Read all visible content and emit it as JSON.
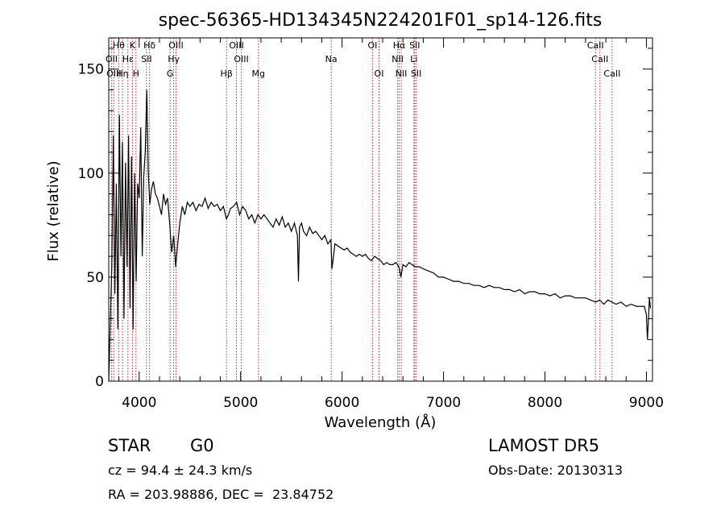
{
  "chart_data": {
    "type": "line",
    "title": "spec-56365-HD134345N224201F01_sp14-126.fits",
    "xlabel": "Wavelength (Å)",
    "ylabel": "Flux (relative)",
    "xlim": [
      3700,
      9060
    ],
    "ylim": [
      0,
      165
    ],
    "xticks": [
      4000,
      5000,
      6000,
      7000,
      8000,
      9000
    ],
    "yticks": [
      0,
      50,
      100,
      150
    ],
    "grid": false,
    "colors": {
      "spectrum": "#000000",
      "line_markers": "#b03030",
      "axes": "#000000"
    },
    "spectral_lines": [
      {
        "label": "Hθ",
        "x": 3798,
        "row": 0
      },
      {
        "label": "K",
        "x": 3934,
        "row": 0
      },
      {
        "label": "Hδ",
        "x": 4102,
        "row": 0
      },
      {
        "label": "OIII",
        "x": 4363,
        "row": 0
      },
      {
        "label": "OIII",
        "x": 4959,
        "row": 0
      },
      {
        "label": "OI",
        "x": 6300,
        "row": 0
      },
      {
        "label": "Hα",
        "x": 6563,
        "row": 0
      },
      {
        "label": "SII",
        "x": 6716,
        "row": 0
      },
      {
        "label": "CaII",
        "x": 8498,
        "row": 0
      },
      {
        "label": "OII",
        "x": 3727,
        "row": 1
      },
      {
        "label": "Hε",
        "x": 3889,
        "row": 1
      },
      {
        "label": "SII",
        "x": 4072,
        "row": 1
      },
      {
        "label": "Hγ",
        "x": 4340,
        "row": 1
      },
      {
        "label": "OIII",
        "x": 5007,
        "row": 1
      },
      {
        "label": "NII",
        "x": 6548,
        "row": 1
      },
      {
        "label": "Li",
        "x": 6708,
        "row": 1
      },
      {
        "label": "CaII",
        "x": 8542,
        "row": 1
      },
      {
        "label": "OIII",
        "x": 3750,
        "row": 2
      },
      {
        "label": "Hη",
        "x": 3835,
        "row": 2
      },
      {
        "label": "H",
        "x": 3968,
        "row": 2
      },
      {
        "label": "G",
        "x": 4305,
        "row": 2
      },
      {
        "label": "Hβ",
        "x": 4861,
        "row": 2
      },
      {
        "label": "Mg",
        "x": 5175,
        "row": 2
      },
      {
        "label": "Na",
        "x": 5893,
        "row": 1
      },
      {
        "label": "OI",
        "x": 6364,
        "row": 2
      },
      {
        "label": "NII",
        "x": 6583,
        "row": 2
      },
      {
        "label": "SII",
        "x": 6731,
        "row": 2
      },
      {
        "label": "CaII",
        "x": 8662,
        "row": 2
      }
    ],
    "series": [
      {
        "x": [
          3700,
          3715,
          3730,
          3745,
          3760,
          3775,
          3790,
          3805,
          3820,
          3835,
          3850,
          3865,
          3880,
          3895,
          3910,
          3925,
          3940,
          3955,
          3970,
          3985,
          4000,
          4015,
          4030,
          4045,
          4060,
          4075,
          4090,
          4105,
          4120,
          4140,
          4160,
          4180,
          4200,
          4220,
          4240,
          4260,
          4280,
          4300,
          4320,
          4340,
          4360,
          4380,
          4400,
          4425,
          4450,
          4475,
          4500,
          4530,
          4560,
          4590,
          4620,
          4650,
          4680,
          4710,
          4740,
          4770,
          4800,
          4830,
          4860,
          4880,
          4900,
          4930,
          4960,
          4990,
          5020,
          5050,
          5080,
          5110,
          5140,
          5170,
          5200,
          5230,
          5260,
          5290,
          5320,
          5350,
          5380,
          5410,
          5440,
          5470,
          5500,
          5530,
          5560,
          5570,
          5580,
          5600,
          5620,
          5650,
          5680,
          5710,
          5740,
          5770,
          5800,
          5830,
          5860,
          5890,
          5900,
          5930,
          5960,
          5990,
          6020,
          6050,
          6080,
          6110,
          6140,
          6170,
          6200,
          6230,
          6260,
          6290,
          6320,
          6350,
          6380,
          6410,
          6440,
          6470,
          6500,
          6530,
          6560,
          6580,
          6600,
          6630,
          6660,
          6690,
          6720,
          6760,
          6800,
          6850,
          6900,
          6950,
          7000,
          7050,
          7100,
          7150,
          7200,
          7250,
          7300,
          7350,
          7400,
          7450,
          7500,
          7550,
          7600,
          7650,
          7700,
          7750,
          7800,
          7850,
          7900,
          7950,
          8000,
          8050,
          8100,
          8150,
          8200,
          8250,
          8300,
          8350,
          8400,
          8450,
          8500,
          8540,
          8580,
          8620,
          8660,
          8700,
          8750,
          8800,
          8850,
          8900,
          8950,
          8980,
          9000,
          9010,
          9020,
          9030,
          9040
        ],
        "values": [
          0,
          28,
          55,
          118,
          42,
          95,
          25,
          128,
          60,
          115,
          30,
          105,
          55,
          118,
          35,
          108,
          25,
          100,
          48,
          95,
          88,
          122,
          60,
          98,
          110,
          140,
          100,
          85,
          92,
          96,
          90,
          88,
          84,
          80,
          90,
          85,
          88,
          76,
          62,
          70,
          55,
          66,
          76,
          84,
          80,
          86,
          84,
          86,
          82,
          85,
          84,
          88,
          83,
          86,
          84,
          85,
          82,
          84,
          78,
          80,
          83,
          84,
          86,
          80,
          84,
          82,
          78,
          80,
          76,
          80,
          78,
          80,
          78,
          76,
          74,
          78,
          75,
          79,
          74,
          76,
          72,
          76,
          70,
          48,
          74,
          76,
          72,
          70,
          74,
          71,
          72,
          70,
          68,
          70,
          66,
          68,
          54,
          66,
          65,
          64,
          63,
          64,
          62,
          61,
          60,
          61,
          60,
          61,
          59,
          58,
          60,
          59,
          58,
          56,
          57,
          56,
          56,
          57,
          55,
          50,
          56,
          55,
          57,
          56,
          55,
          55,
          54,
          53,
          52,
          50,
          50,
          49,
          48,
          48,
          47,
          47,
          46,
          46,
          45,
          46,
          45,
          45,
          44,
          44,
          43,
          44,
          42,
          43,
          43,
          42,
          42,
          41,
          42,
          40,
          41,
          41,
          40,
          40,
          40,
          39,
          38,
          39,
          37,
          39,
          38,
          37,
          38,
          36,
          37,
          36,
          36,
          36,
          32,
          20,
          30,
          40,
          35
        ]
      }
    ]
  },
  "meta": {
    "object_class": "STAR",
    "subclass": "G0",
    "survey": "LAMOST DR5",
    "cz": "cz = 94.4 ± 24.3 km/s",
    "obs_date": "Obs-Date: 20130313",
    "coords": "RA = 203.98886, DEC =  23.84752"
  }
}
